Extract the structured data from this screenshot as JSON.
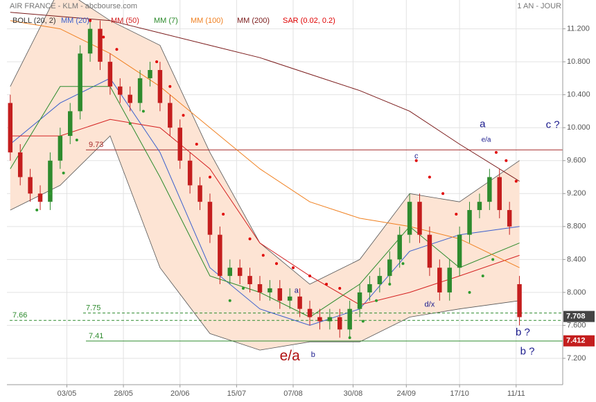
{
  "chart_data": {
    "type": "candlestick",
    "title": "AIR FRANCE - KLM - abcbourse.com",
    "period": "1 AN - JOUR",
    "up_color": "#2e8b2e",
    "down_color": "#c41e1e",
    "x": [
      0,
      3,
      6,
      9,
      12,
      15,
      18,
      21,
      24,
      27,
      30,
      33,
      36,
      39,
      42,
      45,
      48,
      51,
      54,
      57,
      60,
      63,
      66,
      69,
      72,
      75,
      78,
      81,
      84,
      87,
      90,
      93,
      96,
      99,
      102,
      105,
      108,
      111,
      114,
      117,
      120,
      123,
      126,
      129,
      132,
      135,
      138,
      141,
      144,
      147,
      150,
      153
    ],
    "open": [
      10.3,
      9.7,
      9.4,
      9.2,
      9.1,
      9.6,
      9.9,
      10.2,
      10.9,
      11.2,
      10.8,
      10.5,
      10.4,
      10.3,
      10.6,
      10.7,
      10.3,
      10.0,
      9.6,
      9.3,
      9.1,
      8.7,
      8.2,
      8.3,
      8.2,
      8.1,
      8.0,
      8.05,
      7.9,
      7.95,
      7.8,
      7.7,
      7.65,
      7.7,
      7.55,
      7.8,
      8.0,
      8.1,
      8.2,
      8.4,
      8.7,
      9.1,
      8.7,
      8.3,
      8.0,
      8.3,
      8.7,
      9.0,
      9.1,
      9.4,
      9.0,
      8.1
    ],
    "high": [
      10.4,
      9.8,
      9.5,
      9.3,
      9.7,
      10.0,
      10.3,
      11.0,
      11.3,
      11.3,
      10.9,
      10.6,
      10.5,
      10.7,
      10.8,
      10.8,
      10.4,
      10.1,
      9.7,
      9.4,
      9.2,
      8.8,
      8.4,
      8.4,
      8.3,
      8.2,
      8.15,
      8.15,
      8.05,
      8.05,
      7.9,
      7.8,
      7.8,
      7.8,
      7.9,
      8.1,
      8.2,
      8.3,
      8.5,
      8.8,
      9.2,
      9.2,
      8.8,
      8.4,
      8.4,
      8.8,
      9.1,
      9.2,
      9.5,
      9.5,
      9.1,
      8.2
    ],
    "low": [
      9.6,
      9.3,
      9.1,
      9.0,
      9.0,
      9.5,
      9.8,
      10.1,
      10.8,
      10.7,
      10.4,
      10.3,
      10.2,
      10.2,
      10.5,
      10.2,
      9.9,
      9.5,
      9.2,
      9.0,
      8.6,
      8.1,
      8.1,
      8.1,
      8.0,
      7.9,
      7.9,
      7.8,
      7.8,
      7.7,
      7.6,
      7.55,
      7.55,
      7.45,
      7.45,
      7.7,
      7.9,
      8.0,
      8.1,
      8.3,
      8.6,
      8.6,
      8.2,
      7.9,
      7.9,
      8.2,
      8.6,
      8.9,
      9.0,
      8.9,
      8.7,
      7.6
    ],
    "close": [
      9.7,
      9.4,
      9.2,
      9.1,
      9.6,
      9.9,
      10.2,
      10.9,
      11.2,
      10.8,
      10.5,
      10.4,
      10.3,
      10.6,
      10.7,
      10.3,
      10.0,
      9.6,
      9.3,
      9.1,
      8.7,
      8.2,
      8.3,
      8.2,
      8.1,
      8.0,
      8.05,
      7.9,
      7.95,
      7.8,
      7.7,
      7.65,
      7.7,
      7.55,
      7.8,
      8.0,
      8.1,
      8.2,
      8.4,
      8.7,
      9.1,
      8.7,
      8.3,
      8.0,
      8.3,
      8.7,
      9.0,
      9.1,
      9.4,
      9.0,
      8.8,
      7.7
    ],
    "bollinger": {
      "name": "BOLL (20, 2)",
      "color": "#555555",
      "fill": "#fde4d4",
      "x": [
        0,
        15,
        30,
        45,
        60,
        75,
        90,
        105,
        120,
        135,
        153
      ],
      "upper": [
        10.5,
        11.7,
        11.3,
        11.0,
        9.7,
        8.6,
        8.1,
        8.4,
        9.2,
        9.1,
        9.6
      ],
      "lower": [
        9.0,
        9.3,
        9.9,
        8.3,
        7.5,
        7.3,
        7.4,
        7.4,
        7.7,
        7.8,
        7.9
      ]
    },
    "series": [
      {
        "name": "MM (20)",
        "color": "#3a5fcd",
        "x": [
          0,
          15,
          30,
          45,
          60,
          75,
          90,
          105,
          120,
          135,
          153
        ],
        "values": [
          9.8,
          10.3,
          10.6,
          9.7,
          8.3,
          7.8,
          7.6,
          7.8,
          8.5,
          8.7,
          8.8
        ]
      },
      {
        "name": "MM (50)",
        "color": "#d42020",
        "x": [
          0,
          15,
          30,
          45,
          60,
          75,
          90,
          105,
          120,
          135,
          153
        ],
        "values": [
          9.9,
          9.9,
          10.1,
          10.0,
          9.5,
          8.6,
          8.2,
          7.85,
          8.0,
          8.2,
          8.45
        ]
      },
      {
        "name": "MM (7)",
        "color": "#2a8a2a",
        "x": [
          0,
          15,
          30,
          45,
          60,
          75,
          90,
          105,
          120,
          135,
          153
        ],
        "values": [
          9.5,
          10.5,
          10.5,
          9.4,
          8.2,
          8.0,
          7.7,
          8.1,
          8.8,
          8.3,
          8.6
        ]
      },
      {
        "name": "MM (100)",
        "color": "#f08020",
        "x": [
          0,
          15,
          30,
          45,
          60,
          75,
          90,
          105,
          120,
          135,
          153
        ],
        "values": [
          11.3,
          11.2,
          10.9,
          10.5,
          10.0,
          9.5,
          9.1,
          8.9,
          8.8,
          8.65,
          8.3
        ]
      },
      {
        "name": "MM (200)",
        "color": "#7a1a1a",
        "x": [
          0,
          15,
          30,
          45,
          60,
          75,
          90,
          105,
          120,
          135,
          153
        ],
        "values": [
          11.4,
          11.35,
          11.3,
          11.15,
          11.0,
          10.85,
          10.65,
          10.45,
          10.2,
          9.8,
          9.35
        ]
      }
    ],
    "sar": {
      "name": "SAR (0.02, 0.2)",
      "color": "#e00000",
      "up_color": "#2e9a2e",
      "x": [
        8,
        12,
        16,
        20,
        24,
        28,
        32,
        36,
        40,
        44,
        48,
        52,
        56,
        60,
        64,
        66,
        70,
        72,
        76,
        80,
        85,
        90,
        95,
        99,
        102,
        106,
        110,
        114,
        118,
        122,
        126,
        130,
        134,
        138,
        142,
        145,
        146,
        149,
        152
      ],
      "values": [
        9.0,
        9.2,
        9.45,
        9.85,
        11.3,
        11.1,
        10.95,
        10.05,
        10.2,
        10.8,
        10.5,
        10.15,
        9.8,
        9.4,
        8.95,
        7.9,
        8.05,
        8.65,
        8.45,
        8.35,
        8.3,
        8.2,
        8.1,
        8.05,
        7.45,
        7.65,
        7.9,
        8.1,
        8.35,
        9.6,
        9.4,
        9.2,
        8.95,
        8.0,
        8.2,
        8.4,
        9.7,
        9.6,
        9.35
      ]
    },
    "hlines": [
      {
        "value": 9.73,
        "color": "#a52a2a",
        "dashed": false
      },
      {
        "value": 7.75,
        "color": "#2e8b2e",
        "dashed": true
      },
      {
        "value": 7.66,
        "color": "#2e8b2e",
        "dashed": true
      },
      {
        "value": 7.41,
        "color": "#2e8b2e",
        "dashed": false
      }
    ],
    "price_tags": [
      7.708,
      7.412
    ],
    "annotations": [
      {
        "text": "a",
        "x": 141.9,
        "y": 10.04,
        "color": "#1a1a8c"
      },
      {
        "text": "e/a",
        "x": 143,
        "y": 9.85,
        "color": "#1a1a8c"
      },
      {
        "text": "c ?",
        "x": 163,
        "y": 10.03,
        "color": "#1a1a8c"
      },
      {
        "text": "c",
        "x": 122,
        "y": 9.65,
        "color": "#1a1a8c"
      },
      {
        "text": "d/x",
        "x": 126,
        "y": 7.85,
        "color": "#1a1a8c"
      },
      {
        "text": "a",
        "x": 86,
        "y": 8.02,
        "color": "#1a1a8c"
      },
      {
        "text": "b",
        "x": 91,
        "y": 7.24,
        "color": "#1a1a8c"
      },
      {
        "text": "e/a",
        "x": 84,
        "y": 7.22,
        "color": "#b01010"
      },
      {
        "text": "b ?",
        "x": 154,
        "y": 7.51,
        "color": "#1a1a8c"
      },
      {
        "text": "b ?",
        "x": 155.4,
        "y": 7.28,
        "color": "#1a1a8c"
      }
    ],
    "xlim": [
      -1,
      166
    ],
    "ylim": [
      6.88,
      11.55
    ],
    "xticks": [
      {
        "value": 17,
        "label": "03/05"
      },
      {
        "value": 34,
        "label": "28/05"
      },
      {
        "value": 51,
        "label": "20/06"
      },
      {
        "value": 68,
        "label": "15/07"
      },
      {
        "value": 85,
        "label": "07/08"
      },
      {
        "value": 103,
        "label": "30/08"
      },
      {
        "value": 119,
        "label": "24/09"
      },
      {
        "value": 135,
        "label": "17/10"
      },
      {
        "value": 152,
        "label": "11/11"
      }
    ],
    "yticks": [
      {
        "value": 7.2,
        "label": "7.200"
      },
      {
        "value": 7.6,
        "label": "7.600"
      },
      {
        "value": 8.0,
        "label": "8.000"
      },
      {
        "value": 8.4,
        "label": "8.400"
      },
      {
        "value": 8.8,
        "label": "8.800"
      },
      {
        "value": 9.2,
        "label": "9.200"
      },
      {
        "value": 9.6,
        "label": "9.600"
      },
      {
        "value": 10.0,
        "label": "10.000"
      },
      {
        "value": 10.4,
        "label": "10.400"
      },
      {
        "value": 10.8,
        "label": "10.800"
      },
      {
        "value": 11.2,
        "label": "11.200"
      }
    ],
    "grid": true
  }
}
